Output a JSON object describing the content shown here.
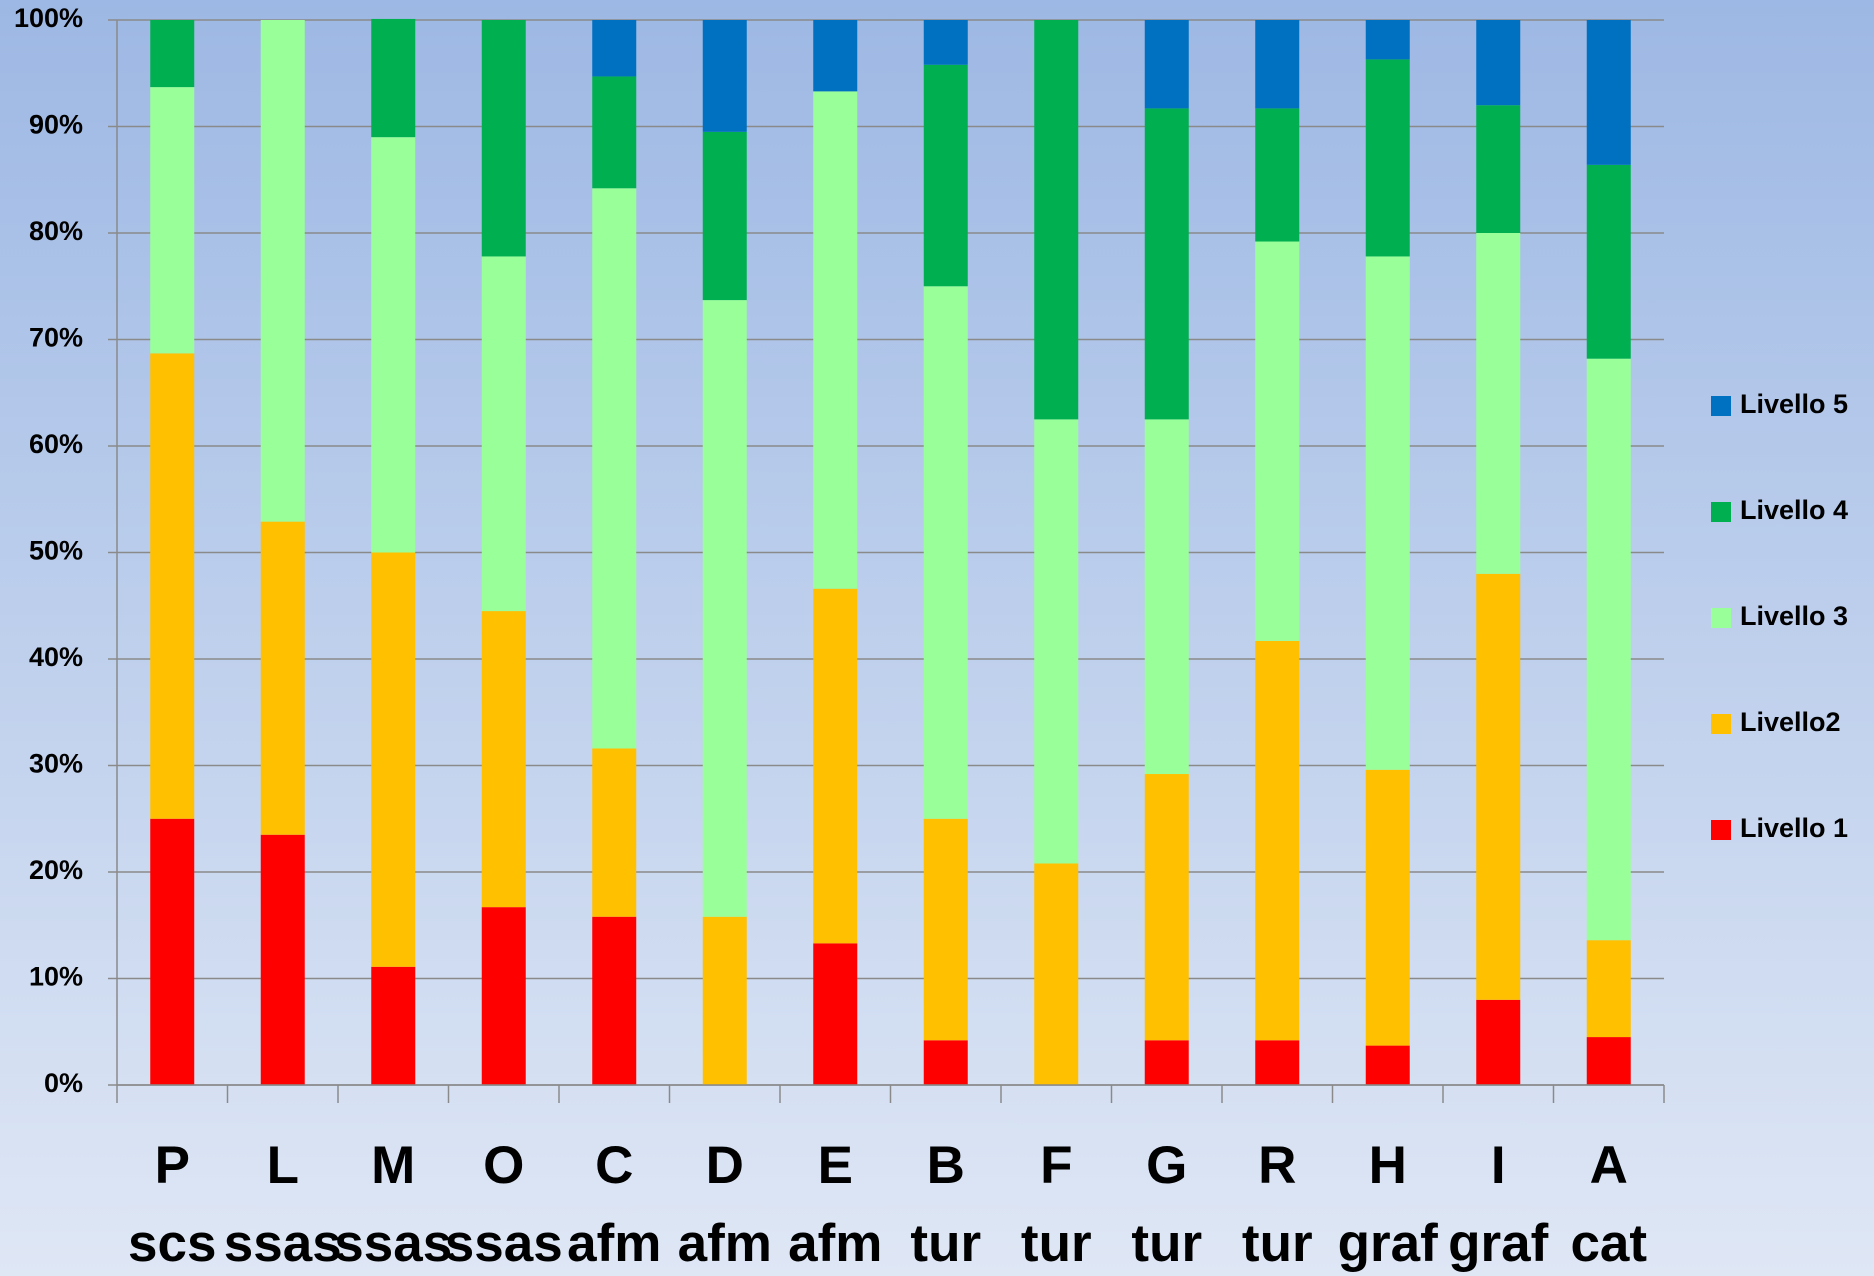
{
  "chart_data": {
    "type": "stacked_bar_100",
    "categories": [
      [
        "P",
        "scs"
      ],
      [
        "L",
        "ssas"
      ],
      [
        "M",
        "ssas"
      ],
      [
        "O",
        "ssas"
      ],
      [
        "C",
        "afm"
      ],
      [
        "D",
        "afm"
      ],
      [
        "E",
        "afm"
      ],
      [
        "B",
        "tur"
      ],
      [
        "F",
        "tur"
      ],
      [
        "G",
        "tur"
      ],
      [
        "R",
        "tur"
      ],
      [
        "H",
        "graf"
      ],
      [
        "I",
        "graf"
      ],
      [
        "A",
        "cat"
      ]
    ],
    "series": [
      {
        "name": "Livello 1",
        "color": "#ff0000",
        "values": [
          25,
          23.5,
          11.1,
          16.7,
          15.8,
          0,
          13.3,
          4.2,
          0,
          4.2,
          4.2,
          3.7,
          8,
          4.5
        ]
      },
      {
        "name": "Livello2",
        "color": "#ffc000",
        "values": [
          43.7,
          29.4,
          38.9,
          27.8,
          15.8,
          15.8,
          33.3,
          20.8,
          20.8,
          25,
          37.5,
          25.9,
          40,
          9.1
        ]
      },
      {
        "name": "Livello 3",
        "color": "#99ff99",
        "values": [
          25,
          47.1,
          39,
          33.3,
          52.6,
          57.9,
          46.7,
          50,
          41.7,
          33.3,
          37.5,
          48.2,
          32,
          54.6
        ]
      },
      {
        "name": "Livello 4",
        "color": "#00b050",
        "values": [
          6.3,
          0,
          11.1,
          22.2,
          10.5,
          15.8,
          0,
          20.8,
          37.5,
          29.2,
          12.5,
          18.5,
          12,
          18.2
        ]
      },
      {
        "name": "Livello 5",
        "color": "#0070c0",
        "values": [
          0,
          0,
          0,
          0,
          5.3,
          10.5,
          6.7,
          4.2,
          0,
          8.3,
          8.3,
          3.7,
          8,
          13.6
        ]
      }
    ],
    "ylim": [
      0,
      100
    ],
    "yticks": [
      {
        "value": 0,
        "label": "0%"
      },
      {
        "value": 10,
        "label": "10%"
      },
      {
        "value": 20,
        "label": "20%"
      },
      {
        "value": 30,
        "label": "30%"
      },
      {
        "value": 40,
        "label": "40%"
      },
      {
        "value": 50,
        "label": "50%"
      },
      {
        "value": 60,
        "label": "60%"
      },
      {
        "value": 70,
        "label": "70%"
      },
      {
        "value": 80,
        "label": "80%"
      },
      {
        "value": 90,
        "label": "90%"
      },
      {
        "value": 100,
        "label": "100%"
      }
    ],
    "grid": true,
    "legend": "right"
  }
}
